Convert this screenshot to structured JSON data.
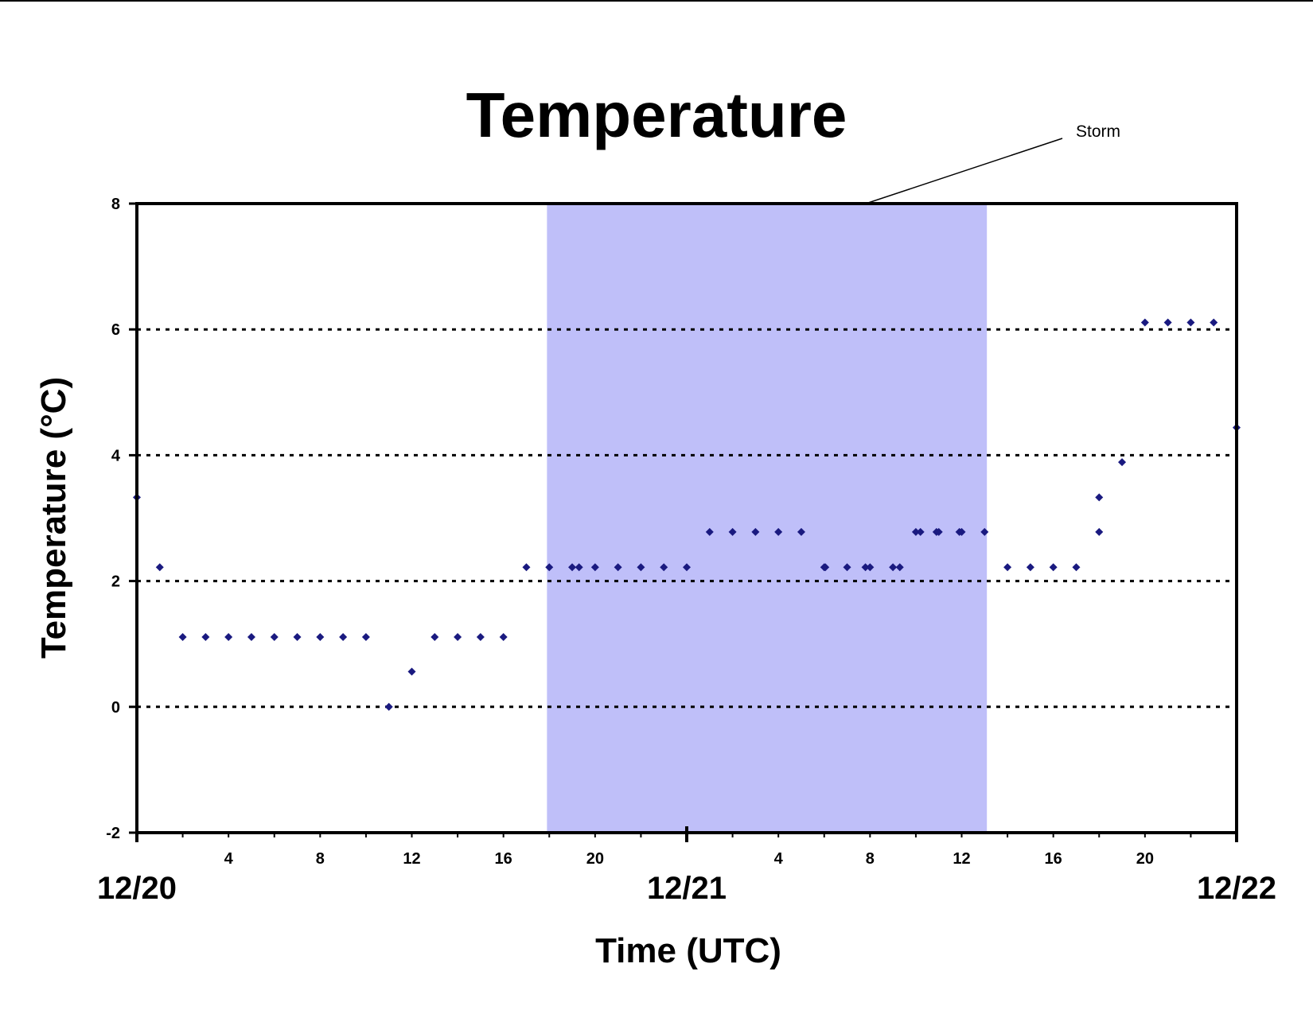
{
  "chart_data": {
    "type": "scatter",
    "title": "Temperature",
    "xlabel": "Time (UTC)",
    "ylabel": "Temperature (°C)",
    "ylim": [
      -2,
      8
    ],
    "yticks": [
      "-2",
      "0",
      "2",
      "4",
      "6",
      "8"
    ],
    "xlim_hours": [
      0,
      48
    ],
    "x_units": "hours, UTC, starting 12/20 00",
    "x_tick_labels": [
      {
        "h": 4,
        "label": "4"
      },
      {
        "h": 8,
        "label": "8"
      },
      {
        "h": 12,
        "label": "12"
      },
      {
        "h": 16,
        "label": "16"
      },
      {
        "h": 20,
        "label": "20"
      },
      {
        "h": 28,
        "label": "4"
      },
      {
        "h": 32,
        "label": "8"
      },
      {
        "h": 36,
        "label": "12"
      },
      {
        "h": 40,
        "label": "16"
      },
      {
        "h": 44,
        "label": "20"
      }
    ],
    "date_labels": [
      {
        "h": 0,
        "label": "12/20"
      },
      {
        "h": 24,
        "label": "12/21"
      },
      {
        "h": 48,
        "label": "12/22"
      }
    ],
    "grid": "horizontal dotted at 0, 2, 4, 6",
    "storm_band": {
      "label": "Storm",
      "start_h": 17.9,
      "end_h": 37.1,
      "color": "#bfbff9"
    },
    "point_color": "#1a1a80",
    "points": [
      [
        0,
        3.33
      ],
      [
        1,
        2.22
      ],
      [
        2,
        1.11
      ],
      [
        3,
        1.11
      ],
      [
        4,
        1.11
      ],
      [
        5,
        1.11
      ],
      [
        6,
        1.11
      ],
      [
        7,
        1.11
      ],
      [
        8,
        1.11
      ],
      [
        9,
        1.11
      ],
      [
        10,
        1.11
      ],
      [
        11,
        0.0
      ],
      [
        12,
        0.56
      ],
      [
        13,
        1.11
      ],
      [
        14,
        1.11
      ],
      [
        15,
        1.11
      ],
      [
        16,
        1.11
      ],
      [
        17,
        2.22
      ],
      [
        18,
        2.22
      ],
      [
        19,
        2.22
      ],
      [
        19.3,
        2.22
      ],
      [
        20,
        2.22
      ],
      [
        21,
        2.22
      ],
      [
        22,
        2.22
      ],
      [
        23,
        2.22
      ],
      [
        24,
        2.22
      ],
      [
        25,
        2.78
      ],
      [
        26,
        2.78
      ],
      [
        27,
        2.78
      ],
      [
        28,
        2.78
      ],
      [
        29,
        2.78
      ],
      [
        30,
        2.22
      ],
      [
        30.05,
        2.22
      ],
      [
        31,
        2.22
      ],
      [
        31.8,
        2.22
      ],
      [
        32,
        2.22
      ],
      [
        33,
        2.22
      ],
      [
        33.3,
        2.22
      ],
      [
        34,
        2.78
      ],
      [
        34.2,
        2.78
      ],
      [
        34.9,
        2.78
      ],
      [
        35,
        2.78
      ],
      [
        35.9,
        2.78
      ],
      [
        36,
        2.78
      ],
      [
        37,
        2.78
      ],
      [
        38,
        2.22
      ],
      [
        39,
        2.22
      ],
      [
        40,
        2.22
      ],
      [
        41,
        2.22
      ],
      [
        42,
        2.78
      ],
      [
        42,
        3.33
      ],
      [
        43,
        3.89
      ],
      [
        44,
        6.11
      ],
      [
        45,
        6.11
      ],
      [
        46,
        6.11
      ],
      [
        47,
        6.11
      ],
      [
        48,
        4.44
      ]
    ]
  }
}
